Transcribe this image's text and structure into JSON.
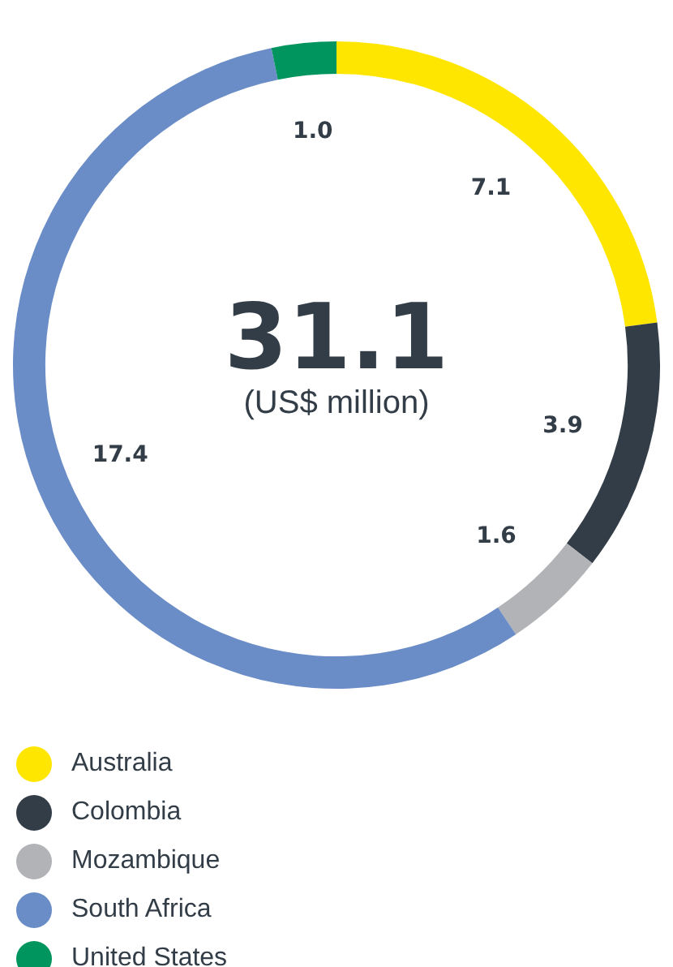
{
  "chart_data": {
    "type": "donut",
    "title": "31.1",
    "subtitle": "(US$ million)",
    "categories": [
      "Australia",
      "Colombia",
      "Mozambique",
      "South Africa",
      "United States"
    ],
    "values": [
      7.1,
      3.9,
      1.6,
      17.4,
      1.0
    ],
    "colors": [
      "#ffe600",
      "#333d47",
      "#b1b3b6",
      "#6a8cc7",
      "#00945e"
    ],
    "value_labels": [
      "7.1",
      "3.9",
      "1.6",
      "17.4",
      "1.0"
    ],
    "legend": "bottom"
  }
}
